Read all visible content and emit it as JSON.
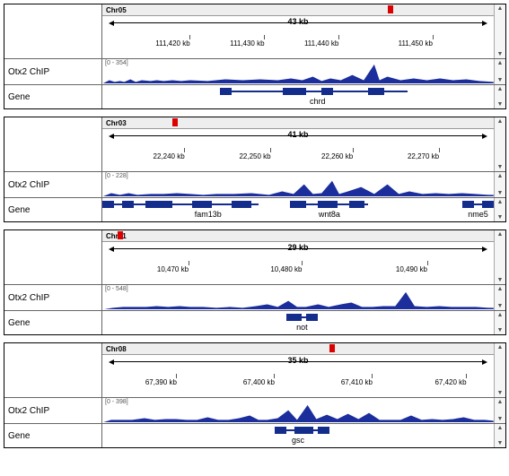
{
  "panels": [
    {
      "chr": "Chr05",
      "spanLabel": "43 kb",
      "redPct": 73,
      "ticks": [
        {
          "p": 18,
          "l": "111,420 kb"
        },
        {
          "p": 37,
          "l": "111,430 kb"
        },
        {
          "p": 56,
          "l": "111,440 kb"
        },
        {
          "p": 80,
          "l": "111,450 kb"
        }
      ],
      "scaleMax": 354,
      "peaks": "0,28 8,24 14,26 20,25 25,26 32,23 38,26 45,24 55,25 62,24 70,25 80,24 90,25 100,24 120,25 140,23 160,24 180,23 200,24 215,22 228,24 240,20 250,25 260,22 272,24 285,18 298,24 310,6 316,24 325,20 340,24 355,22 370,24 385,22 400,24 415,23 430,25 446,26 446,28",
      "genes": [
        {
          "line": [
            30,
            78
          ],
          "segs": [
            [
              30,
              3
            ],
            [
              46,
              6
            ],
            [
              56,
              3
            ],
            [
              68,
              4
            ]
          ],
          "name": "chrd",
          "nameLeft": 55
        }
      ]
    },
    {
      "chr": "Chr03",
      "spanLabel": "41 kb",
      "redPct": 18,
      "ticks": [
        {
          "p": 17,
          "l": "22,240 kb"
        },
        {
          "p": 39,
          "l": "22,250 kb"
        },
        {
          "p": 60,
          "l": "22,260 kb"
        },
        {
          "p": 82,
          "l": "22,270 kb"
        }
      ],
      "scaleMax": 228,
      "peaks": "0,28 10,24 20,26 30,24 40,26 55,25 70,25 85,24 100,25 115,26 130,25 150,25 170,24 190,26 205,22 218,25 230,14 240,25 250,24 262,10 270,25 280,22 295,17 310,25 325,14 338,25 350,22 365,25 380,24 395,25 410,24 425,25 440,26 446,26 446,28",
      "genes": [
        {
          "line": [
            0,
            18
          ],
          "segs": [
            [
              0,
              3
            ],
            [
              5,
              3
            ],
            [
              11,
              4
            ]
          ],
          "name": "",
          "nameLeft": 0
        },
        {
          "line": [
            14,
            40
          ],
          "segs": [
            [
              14,
              4
            ],
            [
              23,
              5
            ],
            [
              33,
              5
            ]
          ],
          "name": "fam13b",
          "nameLeft": 27
        },
        {
          "line": [
            48,
            68
          ],
          "segs": [
            [
              48,
              4
            ],
            [
              55,
              5
            ],
            [
              63,
              4
            ]
          ],
          "name": "wnt8a",
          "nameLeft": 58
        },
        {
          "line": [
            92,
            100
          ],
          "segs": [
            [
              92,
              3
            ],
            [
              97,
              3
            ]
          ],
          "name": "nme5",
          "nameLeft": 96
        }
      ]
    },
    {
      "chr": "Chr01",
      "spanLabel": "29 kb",
      "redPct": 4,
      "ticks": [
        {
          "p": 18,
          "l": "10,470 kb"
        },
        {
          "p": 47,
          "l": "10,480 kb"
        },
        {
          "p": 79,
          "l": "10,490 kb"
        }
      ],
      "scaleMax": 548,
      "peaks": "0,28 12,26 24,25 38,25 50,25 62,24 75,25 88,24 100,25 115,25 130,26 145,25 160,26 175,24 188,22 200,25 212,18 222,25 232,25 246,22 258,25 272,22 284,20 296,25 308,25 320,24 334,24 346,8 356,24 370,25 384,24 398,25 412,25 426,25 440,26 446,26 446,28",
      "genes": [
        {
          "line": [
            47,
            55
          ],
          "segs": [
            [
              47,
              4
            ],
            [
              52,
              3
            ]
          ],
          "name": "not",
          "nameLeft": 51
        }
      ]
    },
    {
      "chr": "Chr08",
      "spanLabel": "35 kb",
      "redPct": 58,
      "ticks": [
        {
          "p": 15,
          "l": "67,390 kb"
        },
        {
          "p": 40,
          "l": "67,400 kb"
        },
        {
          "p": 65,
          "l": "67,410 kb"
        },
        {
          "p": 89,
          "l": "67,420 kb"
        }
      ],
      "scaleMax": 398,
      "peaks": "0,28 10,25 22,25 34,25 48,23 60,25 72,24 84,24 96,25 108,25 120,22 132,25 144,25 156,23 168,20 178,25 188,25 200,23 212,14 222,25 234,8 244,24 256,19 268,24 280,18 292,24 304,17 316,25 328,25 340,25 352,20 364,25 376,24 388,25 400,24 412,22 424,25 436,25 446,26 446,28",
      "genes": [
        {
          "line": [
            44,
            56
          ],
          "segs": [
            [
              44,
              3
            ],
            [
              49,
              5
            ],
            [
              55,
              3
            ]
          ],
          "name": "gsc",
          "nameLeft": 50
        }
      ]
    }
  ],
  "rowLabels": {
    "chip": "Otx2 ChIP",
    "gene": "Gene"
  },
  "colors": {
    "peakFill": "#1b2e9c",
    "gene": "#142c8c",
    "red": "#d00"
  }
}
